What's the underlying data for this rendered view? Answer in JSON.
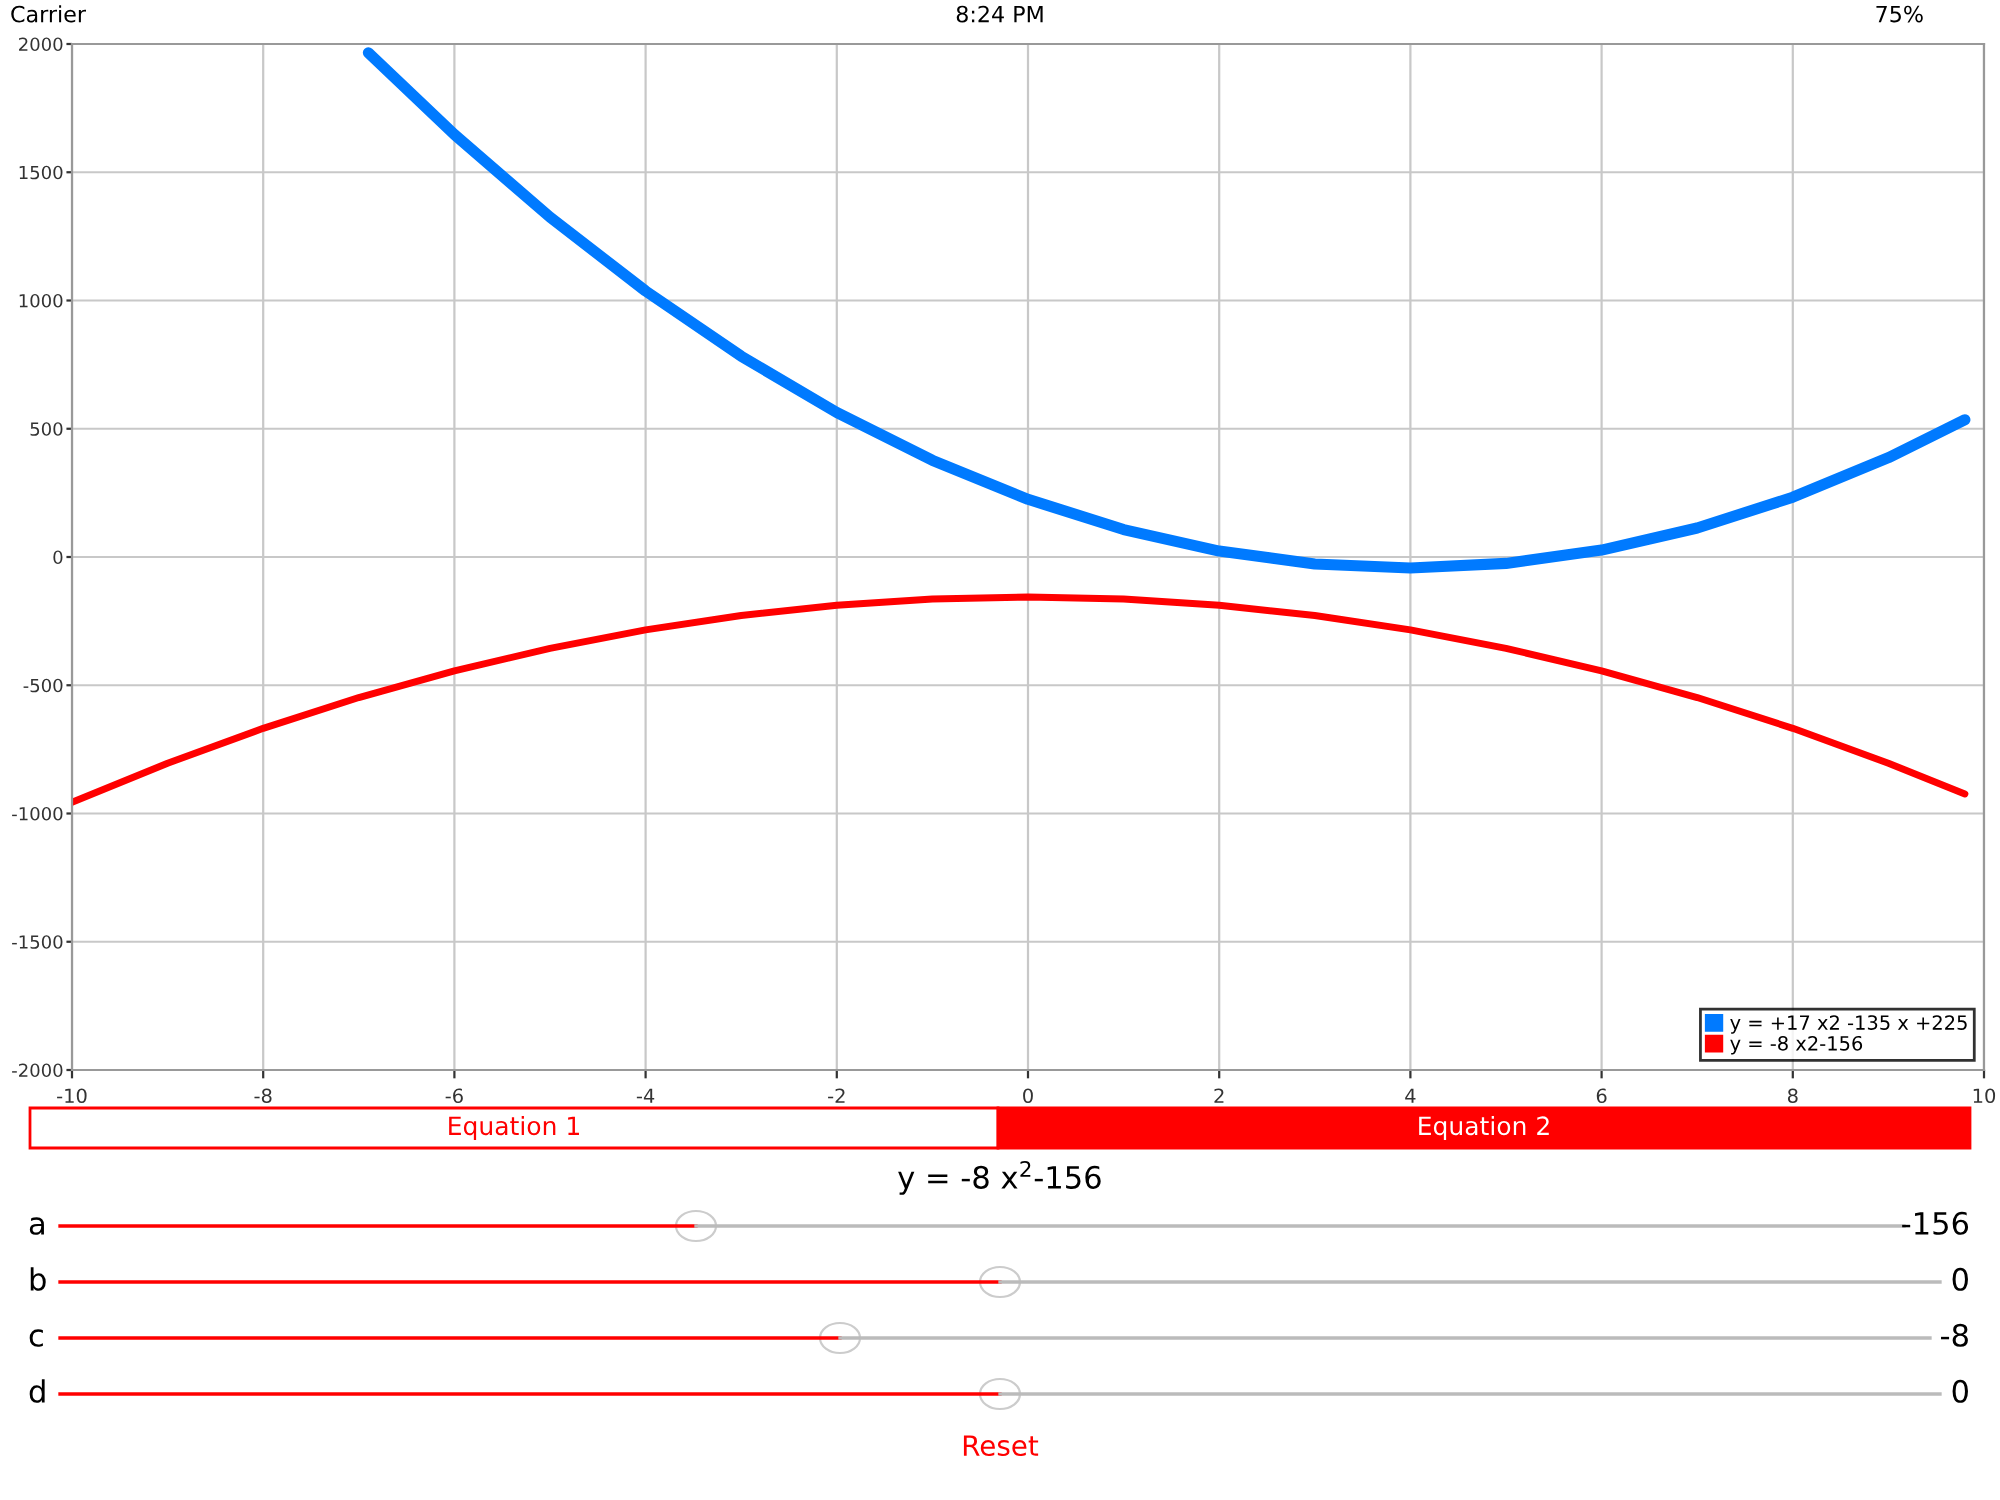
{
  "chart_data": {
    "type": "line",
    "xlim": [
      -10,
      10
    ],
    "ylim": [
      -2000,
      2000
    ],
    "xticks": [
      -10,
      -8,
      -6,
      -4,
      -2,
      0,
      2,
      4,
      6,
      8,
      10
    ],
    "yticks": [
      -2000,
      -1500,
      -1000,
      -500,
      0,
      500,
      1000,
      1500,
      2000
    ],
    "grid": true,
    "legend": "bottom right",
    "marker": "none",
    "line_style": "solid",
    "series": [
      {
        "name": "y = +17 x2 -135 x +225",
        "color": "#007aff",
        "x": [
          -6.9,
          -6,
          -5,
          -4,
          -3,
          -2,
          -1,
          0,
          1,
          2,
          3,
          4,
          5,
          6,
          7,
          8,
          9,
          9.8
        ],
        "values": [
          1966,
          1647,
          1325,
          1037,
          783,
          563,
          377,
          225,
          107,
          23,
          -27,
          -43,
          -25,
          27,
          113,
          233,
          387,
          535
        ]
      },
      {
        "name": "y = -8 x2-156",
        "color": "#ff0000",
        "x": [
          -10,
          -9,
          -8,
          -7,
          -6,
          -5,
          -4,
          -3,
          -2,
          -1,
          0,
          1,
          2,
          3,
          4,
          5,
          6,
          7,
          8,
          9,
          9.8
        ],
        "values": [
          -956,
          -804,
          -668,
          -548,
          -444,
          -356,
          -284,
          -228,
          -188,
          -164,
          -156,
          -164,
          -188,
          -228,
          -284,
          -356,
          -444,
          -548,
          -668,
          -804,
          -924
        ]
      }
    ],
    "annotations": [
      "Carrier",
      "8:24 PM",
      "75%",
      "Equation 1",
      "Equation 2",
      "y = -8 x$^{2}$-156",
      "a",
      "-156",
      "b",
      "0",
      "c",
      "-8",
      "d",
      "0",
      "Reset"
    ]
  }
}
